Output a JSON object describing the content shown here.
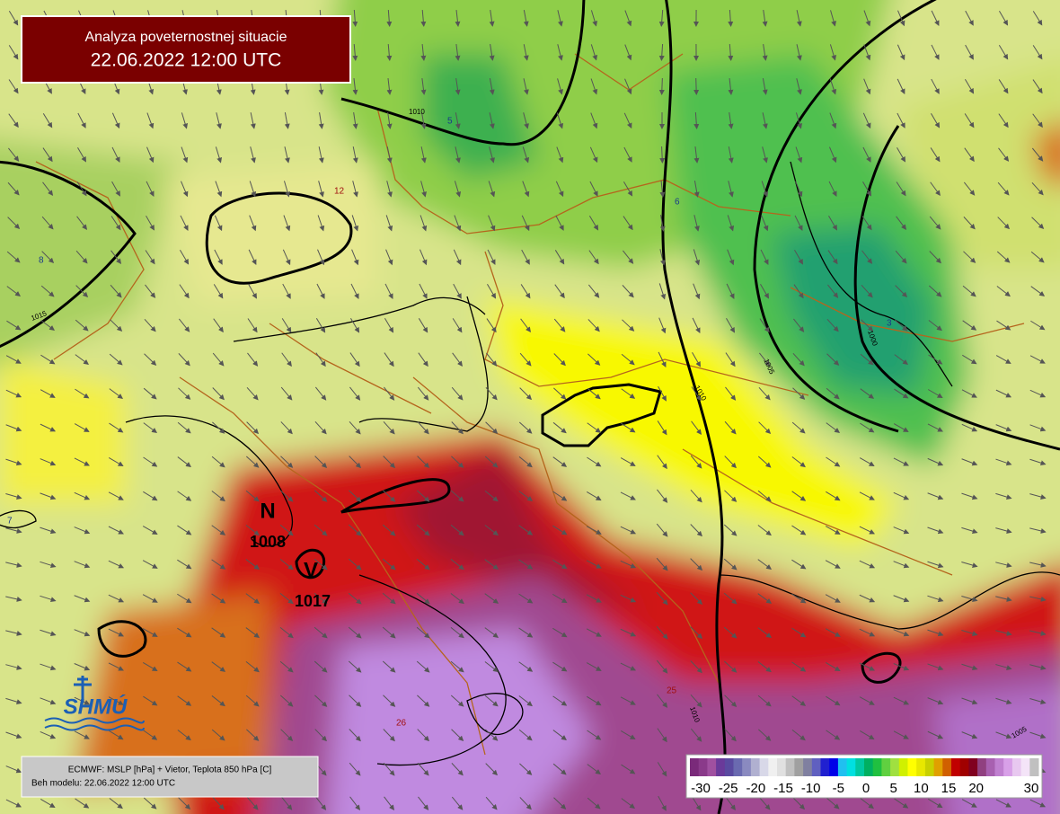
{
  "header": {
    "title": "Analyza poveternostnej situacie",
    "datetime": "22.06.2022 12:00 UTC"
  },
  "pressure_centers": [
    {
      "letter": "N",
      "value": "1008"
    },
    {
      "letter": "V",
      "value": "1017"
    }
  ],
  "isobar_labels": [
    "1010",
    "1015",
    "1010",
    "1005",
    "1000",
    "1010",
    "1005"
  ],
  "temperature_labels": [
    "5",
    "12",
    "8",
    "6",
    "3",
    "7",
    "25",
    "26"
  ],
  "logo": "SHMÚ",
  "footer": {
    "line1": "ECMWF: MSLP [hPa] + Vietor, Teplota 850 hPa [C]",
    "line2": "Beh modelu: 22.06.2022 12:00 UTC"
  },
  "legend": {
    "ticks": [
      -30,
      -25,
      -20,
      -15,
      -10,
      -5,
      0,
      5,
      10,
      15,
      20,
      30
    ]
  }
}
